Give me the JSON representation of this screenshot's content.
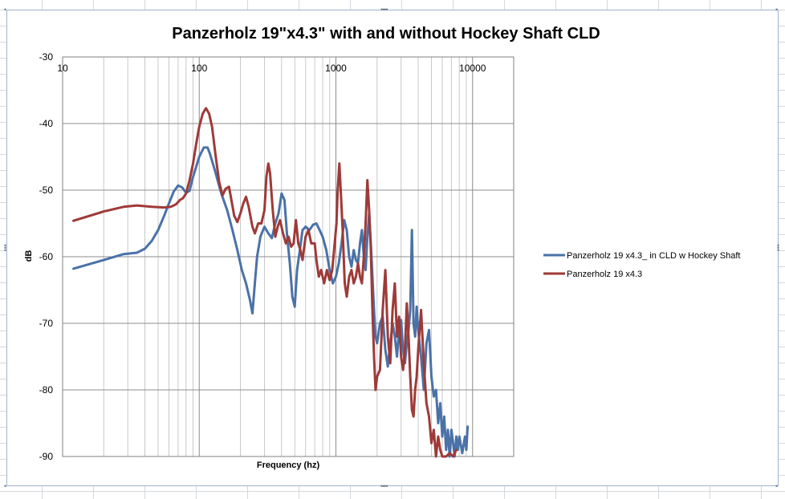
{
  "chart_data": {
    "type": "line",
    "title": "Panzerholz 19\"x4.3\" with and without Hockey Shaft CLD",
    "xlabel": "Frequency (hz)",
    "ylabel": "dB",
    "x_scale": "log",
    "xlim": [
      10,
      20000
    ],
    "ylim": [
      -90,
      -30
    ],
    "x_ticks": [
      "10",
      "100",
      "1000",
      "10000"
    ],
    "y_ticks": [
      "-30",
      "-40",
      "-50",
      "-60",
      "-70",
      "-80",
      "-90"
    ],
    "grid": true,
    "legend": "right",
    "series": [
      {
        "name": "Panzerholz 19 x4.3_ in CLD w Hockey Shaft",
        "color": "#4a72a8",
        "points": [
          [
            12,
            -61.8
          ],
          [
            20,
            -60.5
          ],
          [
            28,
            -59.6
          ],
          [
            35,
            -59.4
          ],
          [
            40,
            -58.8
          ],
          [
            45,
            -57.6
          ],
          [
            50,
            -56
          ],
          [
            55,
            -54
          ],
          [
            60,
            -52
          ],
          [
            65,
            -50.2
          ],
          [
            70,
            -49.3
          ],
          [
            75,
            -49.6
          ],
          [
            80,
            -50.4
          ],
          [
            85,
            -50.1
          ],
          [
            90,
            -48
          ],
          [
            100,
            -45
          ],
          [
            108,
            -43.6
          ],
          [
            115,
            -43.6
          ],
          [
            120,
            -44.6
          ],
          [
            130,
            -47
          ],
          [
            145,
            -50.5
          ],
          [
            160,
            -53
          ],
          [
            175,
            -56
          ],
          [
            190,
            -59
          ],
          [
            205,
            -62
          ],
          [
            220,
            -64
          ],
          [
            235,
            -66.5
          ],
          [
            245,
            -68.5
          ],
          [
            255,
            -64
          ],
          [
            265,
            -60
          ],
          [
            280,
            -57
          ],
          [
            300,
            -55.5
          ],
          [
            320,
            -56.5
          ],
          [
            340,
            -57.2
          ],
          [
            360,
            -55
          ],
          [
            380,
            -53.5
          ],
          [
            400,
            -50.5
          ],
          [
            420,
            -51.5
          ],
          [
            440,
            -57
          ],
          [
            460,
            -61
          ],
          [
            480,
            -66
          ],
          [
            500,
            -67.5
          ],
          [
            520,
            -62
          ],
          [
            545,
            -59
          ],
          [
            570,
            -56
          ],
          [
            600,
            -55.5
          ],
          [
            640,
            -56
          ],
          [
            680,
            -55.2
          ],
          [
            720,
            -55
          ],
          [
            760,
            -56
          ],
          [
            800,
            -57
          ],
          [
            850,
            -59
          ],
          [
            900,
            -62
          ],
          [
            950,
            -64
          ],
          [
            1000,
            -63
          ],
          [
            1050,
            -61
          ],
          [
            1100,
            -58
          ],
          [
            1150,
            -54.5
          ],
          [
            1200,
            -56
          ],
          [
            1250,
            -60
          ],
          [
            1300,
            -61.5
          ],
          [
            1350,
            -59
          ],
          [
            1400,
            -60.5
          ],
          [
            1450,
            -61
          ],
          [
            1500,
            -58
          ],
          [
            1550,
            -56
          ],
          [
            1600,
            -60
          ],
          [
            1650,
            -62
          ],
          [
            1700,
            -57
          ],
          [
            1750,
            -53.5
          ],
          [
            1800,
            -58
          ],
          [
            1850,
            -63
          ],
          [
            1900,
            -68
          ],
          [
            1950,
            -72
          ],
          [
            2000,
            -73
          ],
          [
            2100,
            -70
          ],
          [
            2200,
            -69
          ],
          [
            2300,
            -74
          ],
          [
            2400,
            -76.5
          ],
          [
            2500,
            -73
          ],
          [
            2600,
            -70
          ],
          [
            2700,
            -72
          ],
          [
            2800,
            -75
          ],
          [
            2900,
            -71
          ],
          [
            3000,
            -69.5
          ],
          [
            3100,
            -74
          ],
          [
            3200,
            -76
          ],
          [
            3300,
            -73
          ],
          [
            3400,
            -71
          ],
          [
            3500,
            -68
          ],
          [
            3600,
            -56
          ],
          [
            3700,
            -70
          ],
          [
            3800,
            -72
          ],
          [
            3900,
            -67.5
          ],
          [
            4000,
            -71
          ],
          [
            4200,
            -75
          ],
          [
            4400,
            -80
          ],
          [
            4600,
            -73
          ],
          [
            4800,
            -71
          ],
          [
            5000,
            -78
          ],
          [
            5200,
            -81
          ],
          [
            5400,
            -80
          ],
          [
            5600,
            -85
          ],
          [
            5800,
            -82
          ],
          [
            6000,
            -87
          ],
          [
            6200,
            -84
          ],
          [
            6400,
            -89
          ],
          [
            6600,
            -86
          ],
          [
            6800,
            -90
          ],
          [
            7000,
            -86
          ],
          [
            7200,
            -88
          ],
          [
            7400,
            -90
          ],
          [
            7600,
            -87
          ],
          [
            7800,
            -89
          ],
          [
            8000,
            -87
          ],
          [
            8400,
            -89.5
          ],
          [
            8800,
            -87
          ],
          [
            9000,
            -89
          ],
          [
            9200,
            -85.5
          ]
        ]
      },
      {
        "name": "Panzerholz 19 x4.3",
        "color": "#9e3a38",
        "points": [
          [
            12,
            -54.6
          ],
          [
            20,
            -53.2
          ],
          [
            28,
            -52.5
          ],
          [
            35,
            -52.3
          ],
          [
            45,
            -52.5
          ],
          [
            55,
            -52.6
          ],
          [
            62,
            -52.5
          ],
          [
            68,
            -52.1
          ],
          [
            72,
            -51.5
          ],
          [
            76,
            -51.2
          ],
          [
            80,
            -50.5
          ],
          [
            85,
            -48.5
          ],
          [
            90,
            -46
          ],
          [
            95,
            -43
          ],
          [
            100,
            -40.5
          ],
          [
            106,
            -38.5
          ],
          [
            112,
            -37.7
          ],
          [
            118,
            -38.5
          ],
          [
            124,
            -40.5
          ],
          [
            132,
            -45
          ],
          [
            140,
            -48.8
          ],
          [
            148,
            -50.8
          ],
          [
            156,
            -49.8
          ],
          [
            165,
            -49.5
          ],
          [
            172,
            -51.5
          ],
          [
            180,
            -53.8
          ],
          [
            190,
            -54.8
          ],
          [
            200,
            -53.5
          ],
          [
            210,
            -52
          ],
          [
            220,
            -51
          ],
          [
            230,
            -52.5
          ],
          [
            245,
            -55.5
          ],
          [
            255,
            -56.5
          ],
          [
            270,
            -55
          ],
          [
            285,
            -55
          ],
          [
            300,
            -53
          ],
          [
            310,
            -48
          ],
          [
            320,
            -46
          ],
          [
            330,
            -47.5
          ],
          [
            345,
            -53
          ],
          [
            360,
            -57
          ],
          [
            375,
            -55.5
          ],
          [
            390,
            -54.5
          ],
          [
            410,
            -56.5
          ],
          [
            430,
            -58
          ],
          [
            450,
            -57
          ],
          [
            470,
            -58.5
          ],
          [
            490,
            -58
          ],
          [
            510,
            -54.5
          ],
          [
            530,
            -58
          ],
          [
            550,
            -59
          ],
          [
            570,
            -60.5
          ],
          [
            600,
            -57
          ],
          [
            630,
            -56
          ],
          [
            660,
            -58
          ],
          [
            700,
            -58
          ],
          [
            720,
            -60.5
          ],
          [
            750,
            -63
          ],
          [
            780,
            -62
          ],
          [
            820,
            -64
          ],
          [
            860,
            -62
          ],
          [
            900,
            -63.5
          ],
          [
            940,
            -62
          ],
          [
            980,
            -58
          ],
          [
            1010,
            -55
          ],
          [
            1030,
            -50
          ],
          [
            1060,
            -46
          ],
          [
            1090,
            -51
          ],
          [
            1120,
            -56
          ],
          [
            1160,
            -64
          ],
          [
            1200,
            -66
          ],
          [
            1250,
            -63
          ],
          [
            1300,
            -62
          ],
          [
            1350,
            -64
          ],
          [
            1400,
            -63
          ],
          [
            1450,
            -61
          ],
          [
            1500,
            -63
          ],
          [
            1550,
            -64
          ],
          [
            1600,
            -60
          ],
          [
            1650,
            -55
          ],
          [
            1700,
            -48.5
          ],
          [
            1750,
            -53
          ],
          [
            1800,
            -59
          ],
          [
            1850,
            -68
          ],
          [
            1900,
            -75
          ],
          [
            1950,
            -80
          ],
          [
            2000,
            -78
          ],
          [
            2100,
            -77
          ],
          [
            2200,
            -68
          ],
          [
            2300,
            -62
          ],
          [
            2400,
            -72
          ],
          [
            2500,
            -76
          ],
          [
            2600,
            -68
          ],
          [
            2700,
            -64
          ],
          [
            2800,
            -72
          ],
          [
            2900,
            -69
          ],
          [
            3000,
            -75
          ],
          [
            3100,
            -77
          ],
          [
            3200,
            -74
          ],
          [
            3300,
            -67
          ],
          [
            3400,
            -72
          ],
          [
            3500,
            -78
          ],
          [
            3600,
            -83
          ],
          [
            3700,
            -84
          ],
          [
            3800,
            -80
          ],
          [
            3900,
            -78
          ],
          [
            4000,
            -74
          ],
          [
            4200,
            -68
          ],
          [
            4400,
            -76
          ],
          [
            4600,
            -82
          ],
          [
            4800,
            -84
          ],
          [
            5000,
            -88
          ],
          [
            5200,
            -86
          ],
          [
            5400,
            -90
          ],
          [
            5600,
            -87
          ],
          [
            5800,
            -89
          ],
          [
            6000,
            -90
          ],
          [
            6400,
            -90
          ],
          [
            6800,
            -89.5
          ],
          [
            7200,
            -90
          ],
          [
            7600,
            -89
          ]
        ]
      }
    ]
  }
}
